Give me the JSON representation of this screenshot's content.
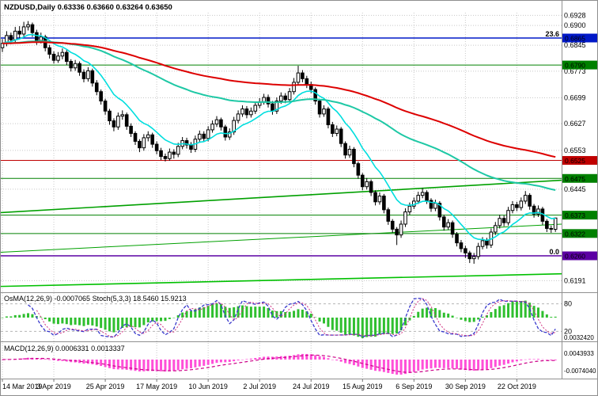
{
  "window": {
    "background": "#ffffff",
    "border_color": "#8e8e8e"
  },
  "header": {
    "symbol_line": "NZDUSD,Daily  0.63336 0.63660 0.63264 0.63650"
  },
  "chart_data": {
    "type": "candlestick",
    "symbol": "NZDUSD",
    "timeframe": "Daily",
    "ohlc_display": {
      "open": 0.63336,
      "high": 0.6366,
      "low": 0.63264,
      "close": 0.6365
    },
    "grid": {
      "on": true,
      "color": "#c8c8c8"
    },
    "price_axis": {
      "min": 0.6155,
      "max": 0.6935,
      "plain_labels": [
        0.6928,
        0.69,
        0.6845,
        0.6773,
        0.6699,
        0.6627,
        0.6553,
        0.6445,
        0.6191
      ],
      "badges": [
        {
          "price": 0.6865,
          "color": "#0018c8"
        },
        {
          "price": 0.679,
          "color": "#008000"
        },
        {
          "price": 0.6525,
          "color": "#c00000"
        },
        {
          "price": 0.6475,
          "color": "#008000"
        },
        {
          "price": 0.6373,
          "color": "#008000"
        },
        {
          "price": 0.6322,
          "color": "#008000"
        },
        {
          "price": 0.626,
          "color": "#5c00a3"
        }
      ]
    },
    "levels": [
      {
        "price": 0.6865,
        "color": "#0018c8",
        "label": "23.6",
        "width": 1.4
      },
      {
        "price": 0.679,
        "color": "#008000",
        "label": "",
        "width": 1
      },
      {
        "price": 0.6525,
        "color": "#c00000",
        "label": "",
        "width": 1
      },
      {
        "price": 0.6475,
        "color": "#008000",
        "label": "",
        "width": 1
      },
      {
        "price": 0.6373,
        "color": "#008000",
        "label": "",
        "width": 1
      },
      {
        "price": 0.6322,
        "color": "#008000",
        "label": "",
        "width": 1
      },
      {
        "price": 0.626,
        "color": "#5c00a3",
        "label": "0.0",
        "width": 1.4
      }
    ],
    "trendlines": [
      {
        "p1": 0.638,
        "p2": 0.647,
        "color": "#00a000",
        "width": 1.6
      },
      {
        "p1": 0.627,
        "p2": 0.6348,
        "color": "#00a000",
        "width": 1
      },
      {
        "p1": 0.6175,
        "p2": 0.621,
        "color": "#00c000",
        "width": 1.6
      }
    ],
    "moving_averages": [
      {
        "name": "fast-ma",
        "period": 11,
        "color": "#00dede",
        "width": 1.6
      },
      {
        "name": "medium-ma",
        "period": 70,
        "color": "#1ec8a5",
        "width": 2
      },
      {
        "name": "slow-ma",
        "period": 130,
        "color": "#dd0000",
        "width": 2
      }
    ],
    "x_labels": [
      {
        "text": "14 Mar 2019",
        "index": 0
      },
      {
        "text": "3 Apr 2019",
        "index": 12
      },
      {
        "text": "25 Apr 2019",
        "index": 24
      },
      {
        "text": "17 May 2019",
        "index": 36
      },
      {
        "text": "10 Jun 2019",
        "index": 48
      },
      {
        "text": "2 Jul 2019",
        "index": 60
      },
      {
        "text": "24 Jul 2019",
        "index": 72
      },
      {
        "text": "15 Aug 2019",
        "index": 84
      },
      {
        "text": "6 Sep 2019",
        "index": 96
      },
      {
        "text": "30 Sep 2019",
        "index": 108
      },
      {
        "text": "22 Oct 2019",
        "index": 120
      }
    ],
    "panel_osma_stoch": {
      "title": "OsMA(12,26,9) -0.0007065 Stoch(5,3,3) 18.5460 15.9213",
      "levels": [
        80,
        20
      ],
      "right_labels": [
        "80",
        "20",
        "0.0032420"
      ],
      "osma_color": "#2fbf2f",
      "stoch_main_color": "#3838cc",
      "stoch_signal_color": "#d03080"
    },
    "panel_macd": {
      "title": "MACD(12,26,9) 0.0006331 0.0013337",
      "right_labels": [
        "0.0043933",
        "-0.0074040"
      ],
      "histogram_color": "#ff4fd8",
      "signal_color": "#cc0088"
    },
    "candles": [
      [
        0.6838,
        0.6862,
        0.6826,
        0.685
      ],
      [
        0.685,
        0.6884,
        0.6842,
        0.6872
      ],
      [
        0.6872,
        0.688,
        0.6848,
        0.686
      ],
      [
        0.686,
        0.6896,
        0.6852,
        0.6884
      ],
      [
        0.6884,
        0.6898,
        0.6862,
        0.6876
      ],
      [
        0.6876,
        0.691,
        0.6866,
        0.6896
      ],
      [
        0.6896,
        0.6912,
        0.6886,
        0.6902
      ],
      [
        0.6902,
        0.6908,
        0.6868,
        0.688
      ],
      [
        0.688,
        0.6888,
        0.6846,
        0.6858
      ],
      [
        0.6858,
        0.688,
        0.685,
        0.6868
      ],
      [
        0.6868,
        0.6874,
        0.6828,
        0.6838
      ],
      [
        0.6838,
        0.6846,
        0.6808,
        0.682
      ],
      [
        0.682,
        0.6828,
        0.6794,
        0.6803
      ],
      [
        0.6803,
        0.6826,
        0.6796,
        0.6815
      ],
      [
        0.6815,
        0.6836,
        0.6806,
        0.6825
      ],
      [
        0.6825,
        0.6832,
        0.679,
        0.68
      ],
      [
        0.68,
        0.6806,
        0.6772,
        0.6782
      ],
      [
        0.6782,
        0.6804,
        0.6774,
        0.6794
      ],
      [
        0.6794,
        0.68,
        0.676,
        0.677
      ],
      [
        0.677,
        0.6778,
        0.6742,
        0.6752
      ],
      [
        0.6752,
        0.6784,
        0.6744,
        0.6774
      ],
      [
        0.6774,
        0.678,
        0.673,
        0.674
      ],
      [
        0.674,
        0.6748,
        0.6706,
        0.6716
      ],
      [
        0.6716,
        0.6722,
        0.668,
        0.669
      ],
      [
        0.669,
        0.6696,
        0.6652,
        0.6662
      ],
      [
        0.6662,
        0.6668,
        0.6624,
        0.6635
      ],
      [
        0.6635,
        0.6642,
        0.6606,
        0.6618
      ],
      [
        0.6618,
        0.6658,
        0.661,
        0.6648
      ],
      [
        0.6648,
        0.6664,
        0.6638,
        0.6652
      ],
      [
        0.6652,
        0.6658,
        0.661,
        0.662
      ],
      [
        0.662,
        0.6628,
        0.659,
        0.66
      ],
      [
        0.66,
        0.6606,
        0.6568,
        0.6578
      ],
      [
        0.6578,
        0.6584,
        0.6548,
        0.656
      ],
      [
        0.656,
        0.6598,
        0.6552,
        0.6588
      ],
      [
        0.6588,
        0.6606,
        0.6578,
        0.6596
      ],
      [
        0.6596,
        0.6602,
        0.656,
        0.657
      ],
      [
        0.657,
        0.6578,
        0.6542,
        0.6552
      ],
      [
        0.6552,
        0.656,
        0.6526,
        0.6536
      ],
      [
        0.6536,
        0.6544,
        0.6522,
        0.653
      ],
      [
        0.653,
        0.6558,
        0.6524,
        0.6548
      ],
      [
        0.6548,
        0.6556,
        0.653,
        0.6542
      ],
      [
        0.6542,
        0.6574,
        0.6534,
        0.6564
      ],
      [
        0.6564,
        0.659,
        0.6556,
        0.658
      ],
      [
        0.658,
        0.6588,
        0.6558,
        0.6568
      ],
      [
        0.6568,
        0.6576,
        0.6546,
        0.6556
      ],
      [
        0.6556,
        0.6594,
        0.6548,
        0.6584
      ],
      [
        0.6584,
        0.6608,
        0.6576,
        0.6598
      ],
      [
        0.6598,
        0.6606,
        0.6576,
        0.6586
      ],
      [
        0.6586,
        0.662,
        0.6578,
        0.661
      ],
      [
        0.661,
        0.6636,
        0.6602,
        0.6626
      ],
      [
        0.6626,
        0.6648,
        0.6618,
        0.6638
      ],
      [
        0.6638,
        0.6644,
        0.6608,
        0.6618
      ],
      [
        0.6618,
        0.6624,
        0.658,
        0.659
      ],
      [
        0.659,
        0.6614,
        0.6582,
        0.6604
      ],
      [
        0.6604,
        0.6646,
        0.6596,
        0.6636
      ],
      [
        0.6636,
        0.6664,
        0.6628,
        0.6654
      ],
      [
        0.6654,
        0.6678,
        0.6646,
        0.6668
      ],
      [
        0.6668,
        0.6676,
        0.6642,
        0.6652
      ],
      [
        0.6652,
        0.6672,
        0.6644,
        0.6662
      ],
      [
        0.6662,
        0.6688,
        0.6654,
        0.6678
      ],
      [
        0.6678,
        0.6698,
        0.667,
        0.6688
      ],
      [
        0.6688,
        0.671,
        0.668,
        0.67
      ],
      [
        0.67,
        0.6708,
        0.6672,
        0.6682
      ],
      [
        0.6682,
        0.669,
        0.6652,
        0.6662
      ],
      [
        0.6662,
        0.67,
        0.6654,
        0.669
      ],
      [
        0.669,
        0.6714,
        0.6682,
        0.6704
      ],
      [
        0.6704,
        0.6712,
        0.6684,
        0.6694
      ],
      [
        0.6694,
        0.6726,
        0.6686,
        0.6716
      ],
      [
        0.6716,
        0.6754,
        0.6708,
        0.6742
      ],
      [
        0.6742,
        0.6788,
        0.6734,
        0.6768
      ],
      [
        0.6768,
        0.6776,
        0.6742,
        0.6752
      ],
      [
        0.6752,
        0.676,
        0.6726,
        0.6736
      ],
      [
        0.6736,
        0.6744,
        0.6712,
        0.6722
      ],
      [
        0.6722,
        0.6728,
        0.668,
        0.669
      ],
      [
        0.669,
        0.6696,
        0.6644,
        0.6654
      ],
      [
        0.6654,
        0.6678,
        0.6646,
        0.6668
      ],
      [
        0.6668,
        0.6674,
        0.6614,
        0.6624
      ],
      [
        0.6624,
        0.6632,
        0.659,
        0.66
      ],
      [
        0.66,
        0.6622,
        0.6592,
        0.6612
      ],
      [
        0.6612,
        0.6618,
        0.6562,
        0.6572
      ],
      [
        0.6572,
        0.6578,
        0.653,
        0.654
      ],
      [
        0.654,
        0.6566,
        0.6532,
        0.6556
      ],
      [
        0.6556,
        0.6562,
        0.6506,
        0.6516
      ],
      [
        0.6516,
        0.6522,
        0.6474,
        0.6484
      ],
      [
        0.6484,
        0.649,
        0.6442,
        0.6452
      ],
      [
        0.6452,
        0.6476,
        0.6444,
        0.6466
      ],
      [
        0.6466,
        0.6472,
        0.6426,
        0.6436
      ],
      [
        0.6436,
        0.6442,
        0.64,
        0.641
      ],
      [
        0.641,
        0.6436,
        0.6402,
        0.6426
      ],
      [
        0.6426,
        0.6432,
        0.6378,
        0.6388
      ],
      [
        0.6388,
        0.6394,
        0.6346,
        0.6356
      ],
      [
        0.6356,
        0.6362,
        0.6324,
        0.6334
      ],
      [
        0.6334,
        0.634,
        0.629,
        0.6318
      ],
      [
        0.6318,
        0.6358,
        0.631,
        0.6348
      ],
      [
        0.6348,
        0.6392,
        0.634,
        0.6382
      ],
      [
        0.6382,
        0.6408,
        0.6374,
        0.6398
      ],
      [
        0.6398,
        0.6422,
        0.639,
        0.6412
      ],
      [
        0.6412,
        0.6438,
        0.6404,
        0.6428
      ],
      [
        0.6428,
        0.6448,
        0.642,
        0.6436
      ],
      [
        0.6436,
        0.6442,
        0.6404,
        0.6414
      ],
      [
        0.6414,
        0.642,
        0.6382,
        0.6392
      ],
      [
        0.6392,
        0.6416,
        0.6384,
        0.6406
      ],
      [
        0.6406,
        0.6412,
        0.6358,
        0.6368
      ],
      [
        0.6368,
        0.6374,
        0.633,
        0.634
      ],
      [
        0.634,
        0.6362,
        0.6332,
        0.6352
      ],
      [
        0.6352,
        0.6358,
        0.631,
        0.632
      ],
      [
        0.632,
        0.6326,
        0.6286,
        0.6296
      ],
      [
        0.6296,
        0.6304,
        0.627,
        0.628
      ],
      [
        0.628,
        0.6288,
        0.6254,
        0.6268
      ],
      [
        0.6268,
        0.6274,
        0.624,
        0.6252
      ],
      [
        0.6252,
        0.6268,
        0.6238,
        0.6258
      ],
      [
        0.6258,
        0.6296,
        0.625,
        0.6286
      ],
      [
        0.6286,
        0.6312,
        0.6278,
        0.6302
      ],
      [
        0.6302,
        0.631,
        0.628,
        0.629
      ],
      [
        0.629,
        0.6336,
        0.6282,
        0.6326
      ],
      [
        0.6326,
        0.6354,
        0.6318,
        0.6344
      ],
      [
        0.6344,
        0.6374,
        0.6336,
        0.6364
      ],
      [
        0.6364,
        0.6372,
        0.6342,
        0.6352
      ],
      [
        0.6352,
        0.6396,
        0.6344,
        0.6386
      ],
      [
        0.6386,
        0.6412,
        0.6378,
        0.6402
      ],
      [
        0.6402,
        0.641,
        0.6384,
        0.6394
      ],
      [
        0.6394,
        0.6422,
        0.6386,
        0.6412
      ],
      [
        0.6412,
        0.644,
        0.6404,
        0.6428
      ],
      [
        0.6428,
        0.6434,
        0.6388,
        0.6398
      ],
      [
        0.6398,
        0.6404,
        0.6366,
        0.6376
      ],
      [
        0.6376,
        0.64,
        0.6368,
        0.639
      ],
      [
        0.639,
        0.6396,
        0.6346,
        0.6356
      ],
      [
        0.6356,
        0.6362,
        0.6326,
        0.6336
      ],
      [
        0.6336,
        0.6344,
        0.6324,
        0.6334
      ],
      [
        0.63336,
        0.6366,
        0.63264,
        0.6365
      ]
    ]
  }
}
